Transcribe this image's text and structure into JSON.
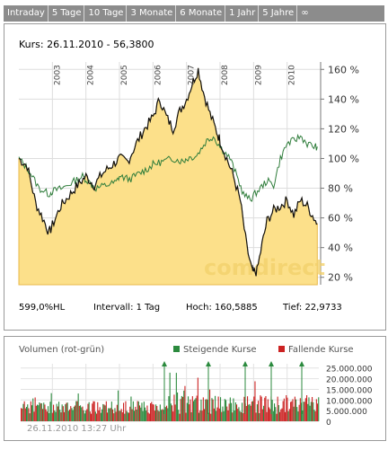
{
  "tabs": [
    "Intraday",
    "5 Tage",
    "10 Tage",
    "3 Monate",
    "6 Monate",
    "1 Jahr",
    "5 Jahre",
    "∞"
  ],
  "header": {
    "kurs": "Kurs: 26.11.2010 - 56,3800"
  },
  "stats": {
    "perf": "599,0%HL",
    "intervall": "Intervall: 1 Tag",
    "hoch": "Hoch: 160,5885",
    "tief": "Tief: 22,9733"
  },
  "watermark": "comdirect",
  "volume": {
    "title": "Volumen (rot-grün)",
    "legend_up": "Steigende Kurse",
    "legend_down": "Fallende Kurse"
  },
  "footer": "26.11.2010 13:27 Uhr",
  "colors": {
    "area": "#fce08a",
    "area_line": "#e8b84a",
    "stock": "#111111",
    "index": "#2f7d3b",
    "vol_up": "#2b8a3e",
    "vol_down": "#cc2222",
    "tab_bg": "#8c8c8c"
  },
  "chart_data": [
    {
      "type": "line",
      "x_ticks": [
        "2003",
        "2004",
        "2005",
        "2006",
        "2007",
        "2008",
        "2009",
        "2010"
      ],
      "y_ticks": [
        "160 %",
        "140 %",
        "120 %",
        "100 %",
        "80 %",
        "60 %",
        "40 %",
        "20 %"
      ],
      "ylim": [
        15,
        165
      ],
      "xlim": [
        2002.0,
        2011.0
      ],
      "series": [
        {
          "values": [
            [
              2002.0,
              100
            ],
            [
              2002.25,
              95
            ],
            [
              2002.5,
              70
            ],
            [
              2002.75,
              58
            ],
            [
              2002.9,
              50
            ],
            [
              2003.0,
              55
            ],
            [
              2003.25,
              68
            ],
            [
              2003.5,
              75
            ],
            [
              2003.75,
              82
            ],
            [
              2004.0,
              88
            ],
            [
              2004.25,
              82
            ],
            [
              2004.5,
              90
            ],
            [
              2004.75,
              95
            ],
            [
              2005.0,
              100
            ],
            [
              2005.25,
              98
            ],
            [
              2005.5,
              110
            ],
            [
              2005.75,
              120
            ],
            [
              2006.0,
              128
            ],
            [
              2006.2,
              140
            ],
            [
              2006.4,
              128
            ],
            [
              2006.6,
              120
            ],
            [
              2006.8,
              132
            ],
            [
              2007.0,
              140
            ],
            [
              2007.2,
              152
            ],
            [
              2007.35,
              160
            ],
            [
              2007.5,
              145
            ],
            [
              2007.7,
              130
            ],
            [
              2007.9,
              118
            ],
            [
              2008.0,
              112
            ],
            [
              2008.2,
              100
            ],
            [
              2008.4,
              88
            ],
            [
              2008.6,
              72
            ],
            [
              2008.8,
              40
            ],
            [
              2008.95,
              25
            ],
            [
              2009.0,
              23
            ],
            [
              2009.1,
              24
            ],
            [
              2009.25,
              42
            ],
            [
              2009.4,
              58
            ],
            [
              2009.6,
              65
            ],
            [
              2009.8,
              68
            ],
            [
              2010.0,
              72
            ],
            [
              2010.2,
              62
            ],
            [
              2010.4,
              72
            ],
            [
              2010.6,
              68
            ],
            [
              2010.8,
              60
            ],
            [
              2010.9,
              56
            ]
          ]
        },
        {
          "values": [
            [
              2002.0,
              100
            ],
            [
              2002.3,
              92
            ],
            [
              2002.6,
              80
            ],
            [
              2002.9,
              76
            ],
            [
              2003.0,
              78
            ],
            [
              2003.3,
              80
            ],
            [
              2003.6,
              84
            ],
            [
              2003.9,
              88
            ],
            [
              2004.0,
              86
            ],
            [
              2004.3,
              80
            ],
            [
              2004.6,
              82
            ],
            [
              2004.9,
              84
            ],
            [
              2005.0,
              88
            ],
            [
              2005.3,
              86
            ],
            [
              2005.6,
              90
            ],
            [
              2005.9,
              94
            ],
            [
              2006.0,
              96
            ],
            [
              2006.3,
              98
            ],
            [
              2006.6,
              100
            ],
            [
              2006.9,
              98
            ],
            [
              2007.0,
              100
            ],
            [
              2007.3,
              102
            ],
            [
              2007.6,
              112
            ],
            [
              2007.8,
              115
            ],
            [
              2008.0,
              108
            ],
            [
              2008.3,
              100
            ],
            [
              2008.5,
              88
            ],
            [
              2008.7,
              76
            ],
            [
              2008.9,
              72
            ],
            [
              2009.0,
              75
            ],
            [
              2009.2,
              80
            ],
            [
              2009.4,
              85
            ],
            [
              2009.6,
              82
            ],
            [
              2009.8,
              100
            ],
            [
              2010.0,
              110
            ],
            [
              2010.2,
              112
            ],
            [
              2010.4,
              115
            ],
            [
              2010.6,
              110
            ],
            [
              2010.8,
              108
            ],
            [
              2010.9,
              108
            ]
          ]
        }
      ]
    },
    {
      "type": "bar",
      "y_ticks": [
        "25.000.000",
        "20.000.000",
        "15.000.000",
        "10.000.000",
        "5.000.000",
        "0"
      ],
      "ylim": [
        0,
        27000000
      ]
    }
  ]
}
